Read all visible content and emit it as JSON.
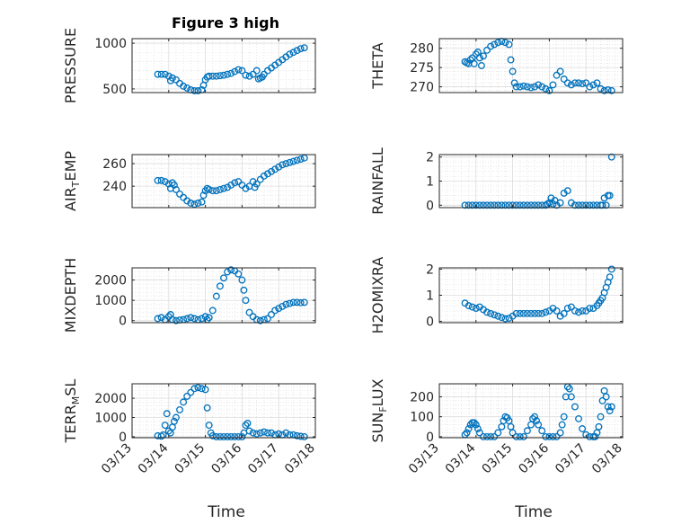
{
  "figure": {
    "title": "Figure 3 high",
    "x_axis_label": "Time",
    "marker_color": "#0072bd"
  },
  "chart_data": [
    {
      "type": "scatter",
      "id": "pressure",
      "title": "Figure 3 high",
      "ylabel": "PRESSURE",
      "ylabel_sub": "",
      "ylabel_post": "",
      "xlabel": "",
      "ylim": [
        460,
        1050
      ],
      "yticks": [
        500,
        1000
      ],
      "ytick_labels": [
        "500",
        "1000"
      ],
      "xlim": [
        0,
        5
      ],
      "xticks": [
        0,
        1,
        2,
        3,
        4,
        5
      ],
      "xtick_labels": [],
      "grid": true,
      "series": [
        {
          "x": [
            0.7,
            0.8,
            0.9,
            1.0,
            1.05,
            1.1,
            1.2,
            1.3,
            1.4,
            1.5,
            1.6,
            1.7,
            1.8,
            1.9,
            1.95,
            2.0,
            2.05,
            2.1,
            2.2,
            2.3,
            2.4,
            2.5,
            2.6,
            2.7,
            2.8,
            2.9,
            3.0,
            3.1,
            3.2,
            3.3,
            3.4,
            3.45,
            3.5,
            3.55,
            3.6,
            3.7,
            3.8,
            3.9,
            4.0,
            4.1,
            4.2,
            4.3,
            4.4,
            4.5,
            4.6,
            4.7
          ],
          "y": [
            660,
            660,
            660,
            640,
            590,
            620,
            600,
            560,
            530,
            510,
            490,
            480,
            480,
            490,
            540,
            600,
            630,
            640,
            640,
            640,
            645,
            650,
            660,
            670,
            690,
            710,
            700,
            650,
            640,
            660,
            700,
            610,
            620,
            630,
            660,
            700,
            730,
            760,
            790,
            820,
            850,
            880,
            900,
            920,
            940,
            950
          ]
        }
      ]
    },
    {
      "type": "scatter",
      "id": "theta",
      "title": "",
      "ylabel": "THETA",
      "ylabel_sub": "",
      "ylabel_post": "",
      "xlabel": "",
      "ylim": [
        268.5,
        282.5
      ],
      "yticks": [
        270,
        275,
        280
      ],
      "ytick_labels": [
        "270",
        "275",
        "280"
      ],
      "xlim": [
        0,
        5
      ],
      "xticks": [
        0,
        1,
        2,
        3,
        4,
        5
      ],
      "xtick_labels": [],
      "grid": true,
      "series": [
        {
          "x": [
            0.7,
            0.75,
            0.8,
            0.85,
            0.9,
            0.95,
            1.0,
            1.05,
            1.1,
            1.15,
            1.2,
            1.3,
            1.4,
            1.5,
            1.6,
            1.7,
            1.8,
            1.9,
            1.95,
            2.0,
            2.05,
            2.1,
            2.2,
            2.3,
            2.4,
            2.5,
            2.6,
            2.7,
            2.8,
            2.9,
            3.0,
            3.1,
            3.2,
            3.3,
            3.4,
            3.5,
            3.6,
            3.7,
            3.8,
            3.9,
            4.0,
            4.1,
            4.2,
            4.3,
            4.4,
            4.5,
            4.6,
            4.7
          ],
          "y": [
            276.5,
            276.2,
            276.0,
            277.0,
            277.5,
            276.0,
            278.5,
            279.0,
            277.5,
            275.5,
            278.0,
            279.5,
            280.5,
            281.0,
            281.5,
            281.8,
            281.5,
            281.0,
            277.0,
            274.0,
            271.0,
            270.0,
            270.0,
            270.2,
            270.0,
            269.8,
            270.0,
            270.5,
            270.0,
            269.5,
            269.0,
            270.5,
            273.0,
            274.0,
            272.0,
            271.0,
            270.5,
            271.0,
            271.0,
            270.8,
            271.0,
            270.0,
            270.5,
            271.0,
            269.5,
            269.0,
            269.2,
            269.0
          ]
        }
      ]
    },
    {
      "type": "scatter",
      "id": "airtemp",
      "title": "",
      "ylabel": "AIR",
      "ylabel_sub": "T",
      "ylabel_post": "EMP",
      "xlabel": "",
      "ylim": [
        221,
        268
      ],
      "yticks": [
        240,
        260
      ],
      "ytick_labels": [
        "240",
        "260"
      ],
      "xlim": [
        0,
        5
      ],
      "xticks": [
        0,
        1,
        2,
        3,
        4,
        5
      ],
      "xtick_labels": [],
      "grid": true,
      "series": [
        {
          "x": [
            0.7,
            0.8,
            0.9,
            1.0,
            1.05,
            1.1,
            1.15,
            1.2,
            1.3,
            1.4,
            1.5,
            1.6,
            1.7,
            1.8,
            1.9,
            1.95,
            2.0,
            2.05,
            2.1,
            2.2,
            2.3,
            2.4,
            2.5,
            2.6,
            2.7,
            2.8,
            2.9,
            3.0,
            3.1,
            3.2,
            3.3,
            3.35,
            3.4,
            3.5,
            3.6,
            3.7,
            3.8,
            3.9,
            4.0,
            4.1,
            4.2,
            4.3,
            4.4,
            4.5,
            4.6,
            4.7
          ],
          "y": [
            245,
            245,
            244,
            242,
            238,
            243,
            241,
            237,
            233,
            230,
            227,
            225,
            224,
            225,
            226,
            232,
            236,
            238,
            237,
            236,
            236,
            237,
            238,
            239,
            241,
            243,
            244,
            241,
            238,
            240,
            244,
            239,
            242,
            246,
            249,
            251,
            253,
            255,
            257,
            259,
            260,
            261,
            262,
            263,
            264,
            265
          ]
        }
      ]
    },
    {
      "type": "scatter",
      "id": "rainfall",
      "title": "",
      "ylabel": "RAINFALL",
      "ylabel_sub": "",
      "ylabel_post": "",
      "xlabel": "",
      "ylim": [
        -0.1,
        2.1
      ],
      "yticks": [
        0,
        1,
        2
      ],
      "ytick_labels": [
        "0",
        "1",
        "2"
      ],
      "xlim": [
        0,
        5
      ],
      "xticks": [
        0,
        1,
        2,
        3,
        4,
        5
      ],
      "xtick_labels": [],
      "grid": true,
      "series": [
        {
          "x": [
            0.7,
            0.8,
            0.9,
            1.0,
            1.1,
            1.2,
            1.3,
            1.4,
            1.5,
            1.6,
            1.7,
            1.8,
            1.9,
            2.0,
            2.1,
            2.2,
            2.3,
            2.4,
            2.5,
            2.6,
            2.7,
            2.8,
            2.9,
            2.95,
            3.0,
            3.05,
            3.1,
            3.15,
            3.2,
            3.3,
            3.4,
            3.5,
            3.6,
            3.7,
            3.8,
            3.9,
            4.0,
            4.1,
            4.2,
            4.3,
            4.4,
            4.45,
            4.5,
            4.55,
            4.6,
            4.65,
            4.7
          ],
          "y": [
            0,
            0,
            0,
            0,
            0,
            0,
            0,
            0,
            0,
            0,
            0,
            0,
            0,
            0,
            0,
            0,
            0,
            0,
            0,
            0,
            0,
            0,
            0,
            0.05,
            0.1,
            0.3,
            0.05,
            0.2,
            0,
            0.1,
            0.5,
            0.6,
            0.1,
            0,
            0,
            0,
            0,
            0,
            0,
            0,
            0,
            0,
            0.3,
            0,
            0.4,
            0.4,
            2.0
          ]
        }
      ]
    },
    {
      "type": "scatter",
      "id": "mixdepth",
      "title": "",
      "ylabel": "MIXDEPTH",
      "ylabel_sub": "",
      "ylabel_post": "",
      "xlabel": "",
      "ylim": [
        -100,
        2600
      ],
      "yticks": [
        0,
        1000,
        2000
      ],
      "ytick_labels": [
        "0",
        "1000",
        "2000"
      ],
      "xlim": [
        0,
        5
      ],
      "xticks": [
        0,
        1,
        2,
        3,
        4,
        5
      ],
      "xtick_labels": [],
      "grid": true,
      "series": [
        {
          "x": [
            0.7,
            0.8,
            0.9,
            1.0,
            1.05,
            1.1,
            1.2,
            1.3,
            1.4,
            1.5,
            1.6,
            1.7,
            1.8,
            1.9,
            2.0,
            2.05,
            2.1,
            2.2,
            2.3,
            2.4,
            2.5,
            2.6,
            2.7,
            2.8,
            2.9,
            3.0,
            3.05,
            3.1,
            3.2,
            3.3,
            3.4,
            3.5,
            3.6,
            3.7,
            3.8,
            3.9,
            4.0,
            4.1,
            4.2,
            4.3,
            4.4,
            4.5,
            4.6,
            4.7
          ],
          "y": [
            100,
            150,
            50,
            200,
            300,
            50,
            0,
            30,
            50,
            100,
            150,
            100,
            50,
            100,
            200,
            50,
            150,
            500,
            1200,
            1700,
            2100,
            2400,
            2500,
            2450,
            2300,
            2000,
            1500,
            1000,
            400,
            200,
            50,
            0,
            50,
            100,
            300,
            500,
            600,
            700,
            800,
            850,
            900,
            900,
            880,
            900
          ]
        }
      ]
    },
    {
      "type": "scatter",
      "id": "h2omixra",
      "title": "",
      "ylabel": "H2OMIXRA",
      "ylabel_sub": "",
      "ylabel_post": "",
      "xlabel": "",
      "ylim": [
        -0.05,
        2.05
      ],
      "yticks": [
        0,
        1,
        2
      ],
      "ytick_labels": [
        "0",
        "1",
        "2"
      ],
      "xlim": [
        0,
        5
      ],
      "xticks": [
        0,
        1,
        2,
        3,
        4,
        5
      ],
      "xtick_labels": [],
      "grid": true,
      "series": [
        {
          "x": [
            0.7,
            0.8,
            0.9,
            1.0,
            1.1,
            1.2,
            1.3,
            1.4,
            1.5,
            1.6,
            1.7,
            1.8,
            1.9,
            2.0,
            2.1,
            2.2,
            2.3,
            2.4,
            2.5,
            2.6,
            2.7,
            2.8,
            2.9,
            3.0,
            3.1,
            3.2,
            3.3,
            3.4,
            3.5,
            3.6,
            3.7,
            3.8,
            3.9,
            4.0,
            4.1,
            4.2,
            4.3,
            4.35,
            4.4,
            4.45,
            4.5,
            4.55,
            4.6,
            4.65,
            4.7
          ],
          "y": [
            0.7,
            0.6,
            0.55,
            0.5,
            0.55,
            0.45,
            0.35,
            0.3,
            0.25,
            0.2,
            0.15,
            0.1,
            0.12,
            0.2,
            0.3,
            0.3,
            0.3,
            0.3,
            0.3,
            0.3,
            0.3,
            0.3,
            0.35,
            0.4,
            0.5,
            0.4,
            0.2,
            0.3,
            0.5,
            0.55,
            0.4,
            0.35,
            0.4,
            0.4,
            0.5,
            0.5,
            0.6,
            0.7,
            0.8,
            0.9,
            1.1,
            1.3,
            1.5,
            1.7,
            2.0
          ]
        }
      ]
    },
    {
      "type": "scatter",
      "id": "terrmsl",
      "title": "",
      "ylabel": "TERR",
      "ylabel_sub": "M",
      "ylabel_post": "SL",
      "xlabel": "Time",
      "ylim": [
        -50,
        2750
      ],
      "yticks": [
        0,
        1000,
        2000
      ],
      "ytick_labels": [
        "0",
        "1000",
        "2000"
      ],
      "xlim": [
        0,
        5
      ],
      "xticks": [
        0,
        1,
        2,
        3,
        4,
        5
      ],
      "xtick_labels": [
        "03/13",
        "03/14",
        "03/15",
        "03/16",
        "03/17",
        "03/18"
      ],
      "grid": true,
      "series": [
        {
          "x": [
            0.7,
            0.8,
            0.85,
            0.9,
            0.95,
            1.0,
            1.05,
            1.1,
            1.15,
            1.2,
            1.3,
            1.4,
            1.5,
            1.6,
            1.7,
            1.8,
            1.9,
            2.0,
            2.05,
            2.1,
            2.15,
            2.2,
            2.3,
            2.4,
            2.5,
            2.6,
            2.7,
            2.8,
            2.9,
            3.0,
            3.05,
            3.1,
            3.15,
            3.2,
            3.3,
            3.4,
            3.5,
            3.6,
            3.7,
            3.8,
            3.9,
            4.0,
            4.1,
            4.2,
            4.3,
            4.4,
            4.5,
            4.6,
            4.7
          ],
          "y": [
            50,
            30,
            100,
            600,
            1200,
            300,
            200,
            500,
            800,
            1000,
            1400,
            1800,
            2100,
            2300,
            2500,
            2550,
            2500,
            2450,
            1500,
            600,
            200,
            50,
            0,
            0,
            0,
            0,
            0,
            0,
            0,
            0,
            200,
            600,
            700,
            300,
            200,
            150,
            200,
            250,
            200,
            200,
            100,
            150,
            100,
            200,
            100,
            100,
            50,
            20,
            0
          ]
        }
      ]
    },
    {
      "type": "scatter",
      "id": "sunflux",
      "title": "",
      "ylabel": "SUN",
      "ylabel_sub": "F",
      "ylabel_post": "LUX",
      "xlabel": "Time",
      "ylim": [
        -5,
        265
      ],
      "yticks": [
        0,
        100,
        200
      ],
      "ytick_labels": [
        "0",
        "100",
        "200"
      ],
      "xlim": [
        0,
        5
      ],
      "xticks": [
        0,
        1,
        2,
        3,
        4,
        5
      ],
      "xtick_labels": [
        "03/13",
        "03/14",
        "03/15",
        "03/16",
        "03/17",
        "03/18"
      ],
      "grid": true,
      "series": [
        {
          "x": [
            0.7,
            0.75,
            0.8,
            0.85,
            0.9,
            0.95,
            1.0,
            1.05,
            1.1,
            1.2,
            1.3,
            1.4,
            1.5,
            1.6,
            1.7,
            1.75,
            1.8,
            1.85,
            1.9,
            1.95,
            2.0,
            2.1,
            2.2,
            2.3,
            2.4,
            2.5,
            2.55,
            2.6,
            2.65,
            2.7,
            2.8,
            2.9,
            3.0,
            3.1,
            3.2,
            3.3,
            3.35,
            3.4,
            3.45,
            3.5,
            3.55,
            3.6,
            3.7,
            3.8,
            3.9,
            4.0,
            4.1,
            4.2,
            4.25,
            4.3,
            4.35,
            4.4,
            4.45,
            4.5,
            4.55,
            4.6,
            4.65,
            4.7
          ],
          "y": [
            10,
            20,
            40,
            60,
            70,
            70,
            60,
            40,
            20,
            0,
            0,
            0,
            0,
            20,
            50,
            80,
            100,
            95,
            80,
            50,
            20,
            0,
            0,
            0,
            30,
            60,
            90,
            100,
            80,
            60,
            30,
            0,
            0,
            0,
            0,
            20,
            60,
            100,
            200,
            250,
            240,
            200,
            150,
            90,
            40,
            10,
            0,
            0,
            0,
            20,
            50,
            100,
            180,
            230,
            200,
            150,
            130,
            150
          ]
        }
      ]
    }
  ]
}
